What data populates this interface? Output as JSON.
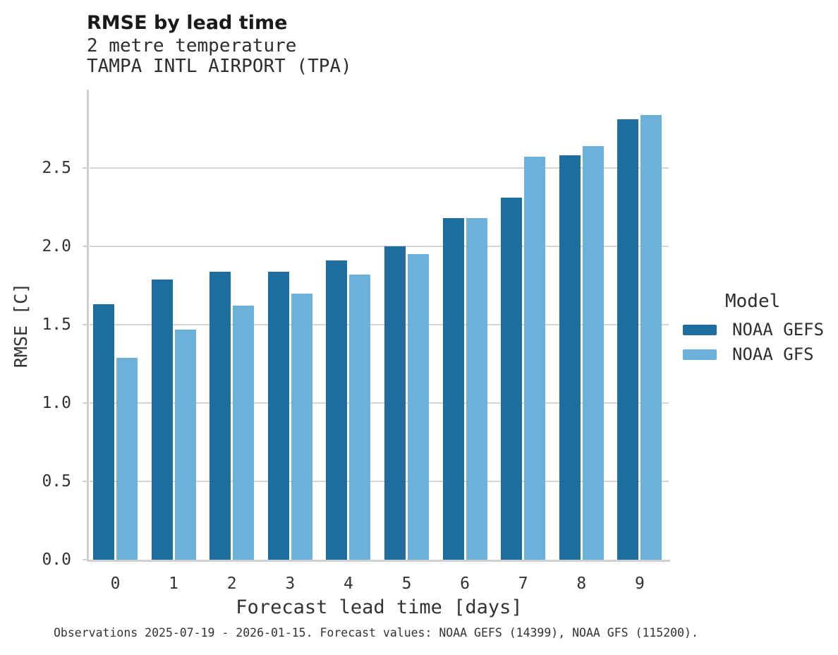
{
  "title": "RMSE by lead time",
  "subtitle1": "2 metre temperature",
  "subtitle2": "TAMPA INTL AIRPORT (TPA)",
  "caption": "Observations 2025-07-19 - 2026-01-15. Forecast values: NOAA GEFS (14399), NOAA GFS (115200).",
  "legend": {
    "title": "Model"
  },
  "chart_data": {
    "type": "bar",
    "title": "RMSE by lead time",
    "subtitle": [
      "2 metre temperature",
      "TAMPA INTL AIRPORT (TPA)"
    ],
    "categories": [
      "0",
      "1",
      "2",
      "3",
      "4",
      "5",
      "6",
      "7",
      "8",
      "9"
    ],
    "series": [
      {
        "name": "NOAA GEFS",
        "color": "#1d6e9e",
        "values": [
          1.63,
          1.79,
          1.84,
          1.84,
          1.91,
          2.0,
          2.18,
          2.31,
          2.58,
          2.81
        ]
      },
      {
        "name": "NOAA GFS",
        "color": "#6bb1da",
        "values": [
          1.29,
          1.47,
          1.62,
          1.7,
          1.82,
          1.95,
          2.18,
          2.57,
          2.64,
          2.84
        ]
      }
    ],
    "xlabel": "Forecast lead time [days]",
    "ylabel": "RMSE [C]",
    "ylim": [
      0,
      3.0
    ],
    "yticks": [
      0.0,
      0.5,
      1.0,
      1.5,
      2.0,
      2.5
    ],
    "grid": "horizontal-major",
    "legend_title": "Model",
    "legend_position": "right",
    "background": "#ffffff"
  }
}
